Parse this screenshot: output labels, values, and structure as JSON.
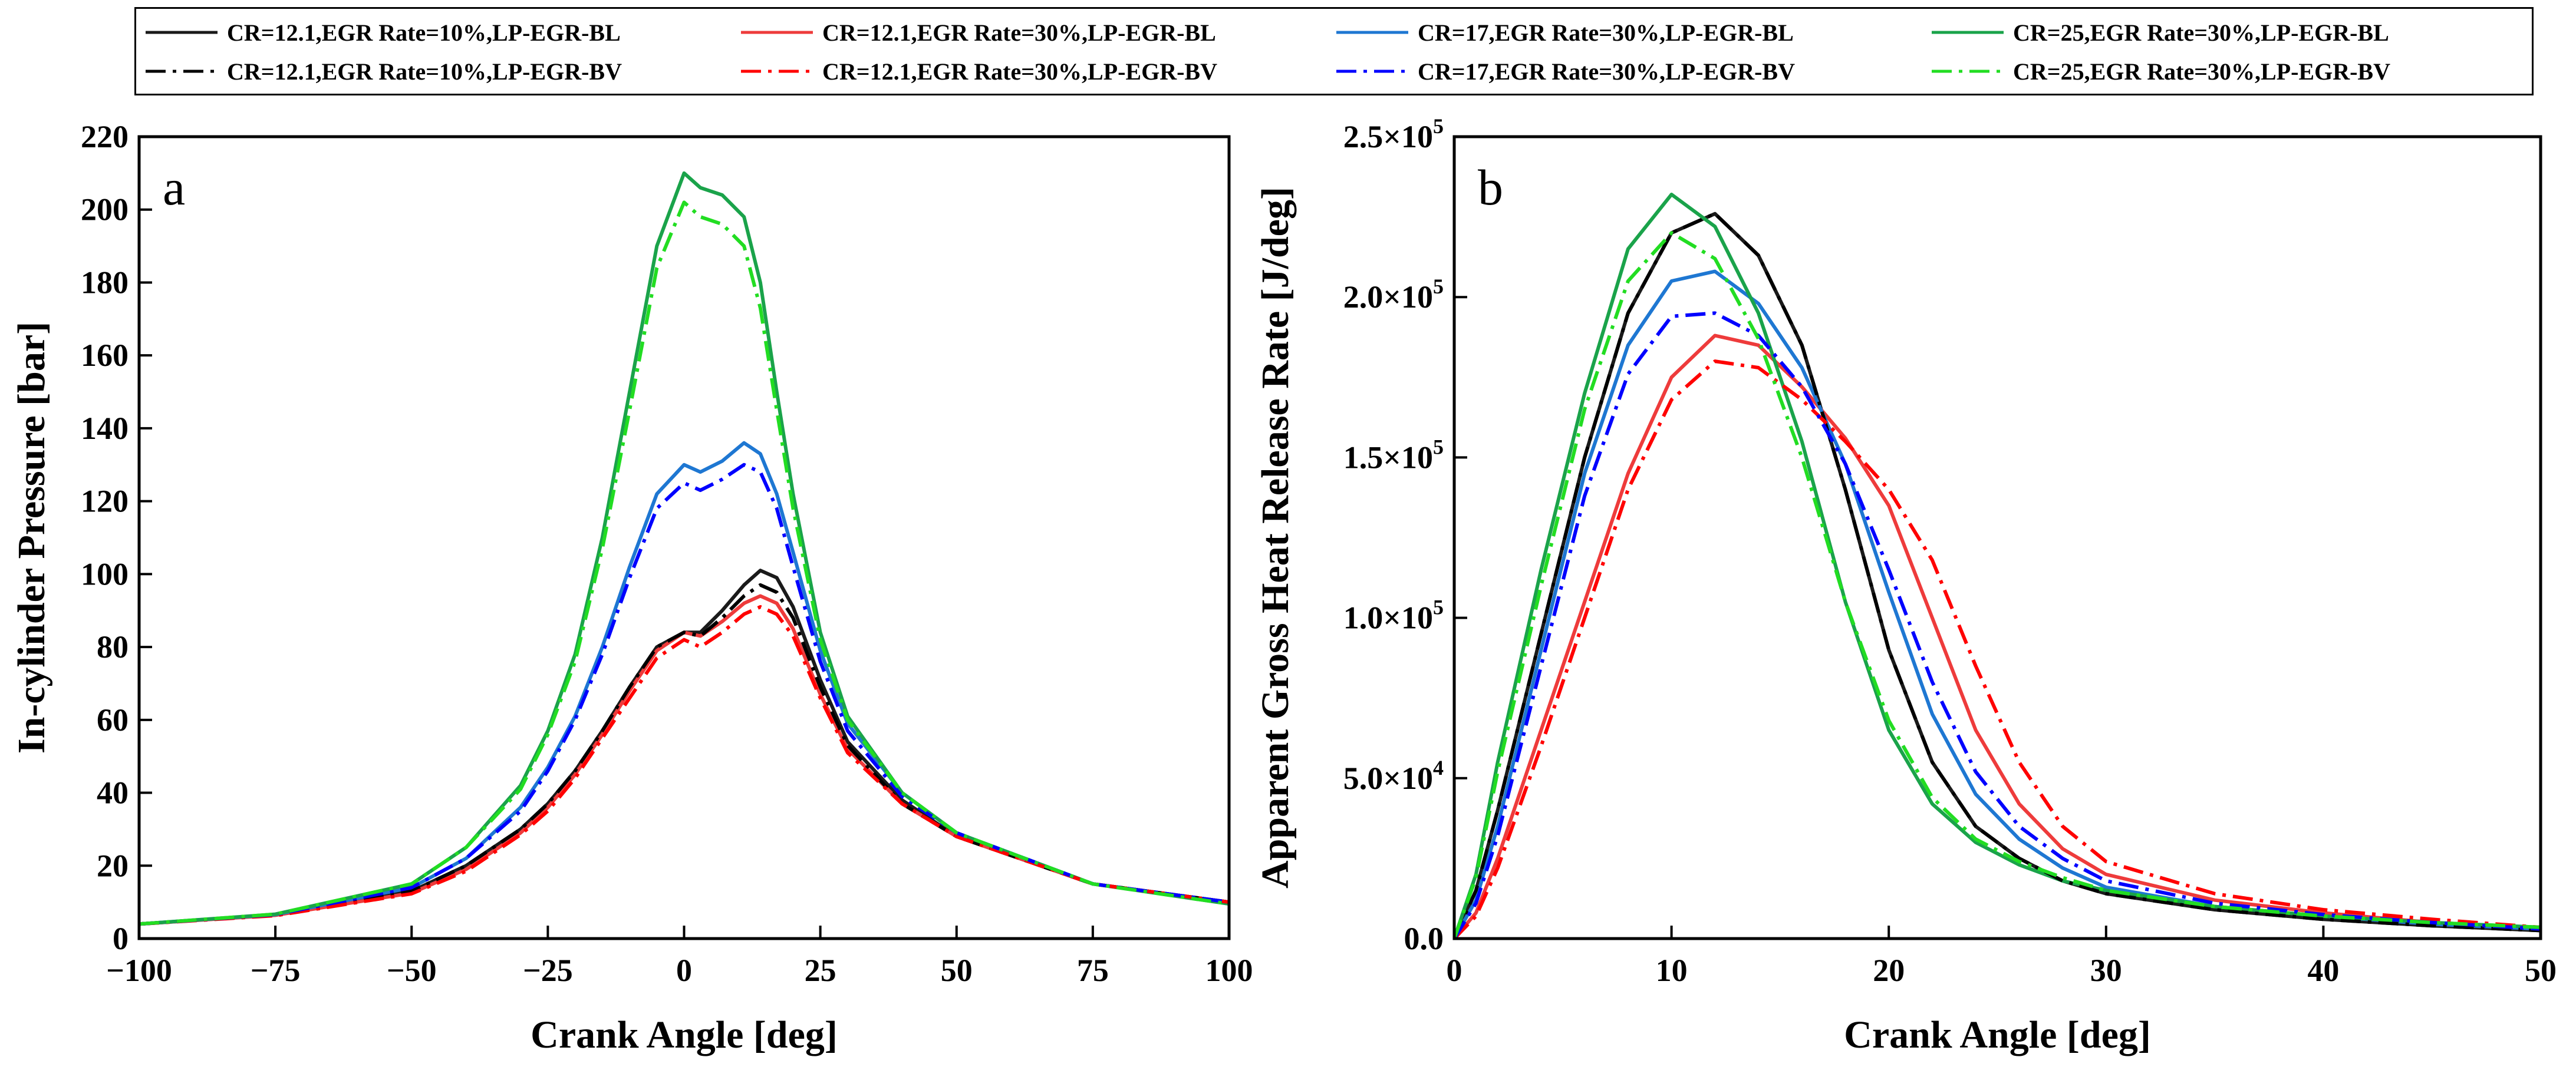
{
  "legend": {
    "entries": [
      {
        "name": "CR=12.1,EGR Rate=10%,LP-EGR-BL",
        "color": "#1a1a1a",
        "dash": "solid"
      },
      {
        "name": "CR=12.1,EGR Rate=30%,LP-EGR-BL",
        "color": "#ee3b3b",
        "dash": "solid"
      },
      {
        "name": "CR=17,EGR Rate=30%,LP-EGR-BL",
        "color": "#1e77d2",
        "dash": "solid"
      },
      {
        "name": "CR=25,EGR Rate=30%,LP-EGR-BL",
        "color": "#1aa34a",
        "dash": "solid"
      },
      {
        "name": "CR=12.1,EGR Rate=10%,LP-EGR-BV",
        "color": "#000000",
        "dash": "dashdot"
      },
      {
        "name": "CR=12.1,EGR Rate=30%,LP-EGR-BV",
        "color": "#ff0000",
        "dash": "dashdot"
      },
      {
        "name": "CR=17,EGR Rate=30%,LP-EGR-BV",
        "color": "#0000ff",
        "dash": "dashdot"
      },
      {
        "name": "CR=25,EGR Rate=30%,LP-EGR-BV",
        "color": "#22dd22",
        "dash": "dashdot"
      }
    ]
  },
  "chart_data": [
    {
      "type": "line",
      "panel_label": "a",
      "xlabel": "Crank Angle [deg]",
      "ylabel": "In-cylinder Pressure [bar]",
      "xlim": [
        -100,
        100
      ],
      "ylim": [
        0,
        220
      ],
      "xticks": [
        -100,
        -75,
        -50,
        -25,
        0,
        25,
        50,
        75,
        100
      ],
      "xtick_labels": [
        "−100",
        "−75",
        "−50",
        "−25",
        "0",
        "25",
        "50",
        "75",
        "100"
      ],
      "yticks": [
        0,
        20,
        40,
        60,
        80,
        100,
        120,
        140,
        160,
        180,
        200,
        220
      ],
      "ytick_labels": [
        "0",
        "20",
        "40",
        "60",
        "80",
        "100",
        "120",
        "140",
        "160",
        "180",
        "200",
        "220"
      ],
      "grid": false,
      "x": [
        -100,
        -75,
        -50,
        -40,
        -30,
        -25,
        -20,
        -15,
        -10,
        -5,
        0,
        3,
        7,
        11,
        14,
        17,
        20,
        25,
        30,
        40,
        50,
        75,
        100
      ],
      "series": [
        {
          "name": "CR=12.1,EGR Rate=10%,LP-EGR-BL",
          "values": [
            4,
            6.5,
            13,
            20,
            30,
            37,
            46,
            57,
            69,
            80,
            84,
            84,
            90,
            97,
            101,
            99,
            91,
            71,
            54,
            38,
            28,
            15,
            10
          ]
        },
        {
          "name": "CR=12.1,EGR Rate=30%,LP-EGR-BL",
          "values": [
            4,
            6.4,
            12.5,
            19,
            29,
            36,
            45,
            56,
            68,
            79,
            84,
            83,
            87,
            92,
            94,
            92,
            85,
            67,
            52,
            37,
            28,
            15,
            10
          ]
        },
        {
          "name": "CR=17,EGR Rate=30%,LP-EGR-BL",
          "values": [
            4,
            6.6,
            14,
            22,
            36,
            47,
            61,
            80,
            102,
            122,
            130,
            128,
            131,
            136,
            133,
            122,
            106,
            79,
            59,
            40,
            29,
            15,
            10
          ]
        },
        {
          "name": "CR=25,EGR Rate=30%,LP-EGR-BL",
          "values": [
            4,
            6.7,
            15,
            25,
            42,
            57,
            78,
            110,
            150,
            190,
            210,
            206,
            204,
            198,
            180,
            150,
            122,
            84,
            61,
            40,
            29,
            15,
            9.5
          ]
        },
        {
          "name": "CR=12.1,EGR Rate=10%,LP-EGR-BV",
          "values": [
            4,
            6.5,
            13,
            20,
            30,
            37,
            46,
            57,
            69,
            80,
            84,
            83,
            88,
            94,
            97,
            95,
            88,
            69,
            53,
            37,
            28,
            15,
            10
          ]
        },
        {
          "name": "CR=12.1,EGR Rate=30%,LP-EGR-BV",
          "values": [
            4,
            6.3,
            12.3,
            18.5,
            28.5,
            35,
            44,
            55,
            66,
            77,
            82,
            80,
            84,
            89,
            91,
            89,
            83,
            66,
            51,
            37,
            28,
            15,
            10
          ]
        },
        {
          "name": "CR=17,EGR Rate=30%,LP-EGR-BV",
          "values": [
            4,
            6.6,
            14,
            22,
            35,
            46,
            60,
            78,
            99,
            118,
            125,
            123,
            126,
            130,
            128,
            118,
            102,
            76,
            57,
            39,
            29,
            15,
            10
          ]
        },
        {
          "name": "CR=25,EGR Rate=30%,LP-EGR-BV",
          "values": [
            4,
            6.7,
            15,
            25,
            41,
            56,
            76,
            107,
            145,
            184,
            202,
            198,
            196,
            190,
            173,
            145,
            118,
            82,
            60,
            40,
            29,
            15,
            9.5
          ]
        }
      ]
    },
    {
      "type": "line",
      "panel_label": "b",
      "xlabel": "Crank Angle [deg]",
      "ylabel": "Apparent Gross Heat Release Rate [J/deg]",
      "xlim": [
        0,
        50
      ],
      "ylim": [
        0,
        250000
      ],
      "xticks": [
        0,
        10,
        20,
        30,
        40,
        50
      ],
      "xtick_labels": [
        "0",
        "10",
        "20",
        "30",
        "40",
        "50"
      ],
      "yticks": [
        0,
        50000,
        100000,
        150000,
        200000,
        250000
      ],
      "ytick_labels": [
        {
          "mant": "0.0",
          "exp": ""
        },
        {
          "mant": "5.0×10",
          "exp": "4"
        },
        {
          "mant": "1.0×10",
          "exp": "5"
        },
        {
          "mant": "1.5×10",
          "exp": "5"
        },
        {
          "mant": "2.0×10",
          "exp": "5"
        },
        {
          "mant": "2.5×10",
          "exp": "5"
        }
      ],
      "grid": false,
      "x": [
        0,
        1,
        2,
        4,
        6,
        8,
        10,
        12,
        14,
        16,
        18,
        20,
        22,
        24,
        26,
        28,
        30,
        35,
        40,
        45,
        50
      ],
      "series": [
        {
          "name": "CR=12.1,EGR Rate=10%,LP-EGR-BL",
          "values": [
            0,
            15000,
            40000,
            95000,
            150000,
            195000,
            220000,
            226000,
            213000,
            185000,
            140000,
            90000,
            55000,
            35000,
            25000,
            18000,
            14000,
            9000,
            6000,
            4000,
            2500
          ]
        },
        {
          "name": "CR=12.1,EGR Rate=30%,LP-EGR-BL",
          "values": [
            0,
            8000,
            25000,
            65000,
            105000,
            145000,
            175000,
            188000,
            185000,
            172000,
            156000,
            135000,
            100000,
            65000,
            42000,
            28000,
            20000,
            12000,
            8000,
            5000,
            3000
          ]
        },
        {
          "name": "CR=17,EGR Rate=30%,LP-EGR-BL",
          "values": [
            0,
            12000,
            35000,
            90000,
            145000,
            185000,
            205000,
            208000,
            198000,
            178000,
            148000,
            108000,
            70000,
            45000,
            31000,
            22000,
            16000,
            10000,
            7000,
            4500,
            3000
          ]
        },
        {
          "name": "CR=25,EGR Rate=30%,LP-EGR-BL",
          "values": [
            0,
            20000,
            55000,
            115000,
            170000,
            215000,
            232000,
            222000,
            195000,
            155000,
            105000,
            65000,
            42000,
            30000,
            23000,
            18000,
            15000,
            10000,
            7000,
            5000,
            3500
          ]
        },
        {
          "name": "CR=12.1,EGR Rate=10%,LP-EGR-BV",
          "values": [
            0,
            15000,
            40000,
            95000,
            150000,
            195000,
            220000,
            226000,
            213000,
            185000,
            140000,
            90000,
            55000,
            35000,
            25000,
            18000,
            14000,
            9000,
            6000,
            4000,
            2500
          ]
        },
        {
          "name": "CR=12.1,EGR Rate=30%,LP-EGR-BV",
          "values": [
            0,
            7000,
            22000,
            60000,
            100000,
            140000,
            168000,
            180000,
            178000,
            168000,
            155000,
            140000,
            118000,
            85000,
            55000,
            35000,
            24000,
            14000,
            9000,
            6000,
            3500
          ]
        },
        {
          "name": "CR=17,EGR Rate=30%,LP-EGR-BV",
          "values": [
            0,
            11000,
            32000,
            85000,
            138000,
            176000,
            194000,
            195000,
            188000,
            172000,
            148000,
            115000,
            80000,
            52000,
            35000,
            25000,
            18000,
            11000,
            7500,
            5000,
            3000
          ]
        },
        {
          "name": "CR=25,EGR Rate=30%,LP-EGR-BV",
          "values": [
            0,
            19000,
            52000,
            110000,
            165000,
            205000,
            220000,
            212000,
            187000,
            150000,
            105000,
            68000,
            44000,
            31000,
            24000,
            19000,
            15000,
            10000,
            7000,
            5000,
            3500
          ]
        }
      ]
    }
  ]
}
